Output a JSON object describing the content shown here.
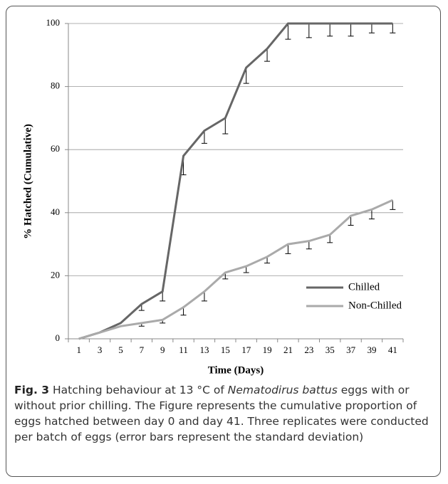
{
  "chart_data": {
    "type": "line",
    "y_label": "% Hatched (Cumulative)",
    "x_label": "Time (Days)",
    "categories": [
      "1",
      "3",
      "5",
      "7",
      "9",
      "11",
      "13",
      "15",
      "17",
      "19",
      "21",
      "23",
      "35",
      "37",
      "39",
      "41"
    ],
    "series": [
      {
        "name": "Chilled",
        "color": "#666666",
        "values": [
          0,
          2,
          5,
          11,
          15,
          58,
          66,
          70,
          86,
          92,
          100,
          100,
          100,
          100,
          100,
          100
        ],
        "errors": [
          null,
          null,
          null,
          2,
          3,
          6,
          4,
          5,
          5,
          4,
          5,
          4.5,
          4,
          4,
          3,
          3
        ]
      },
      {
        "name": "Non-Chilled",
        "color": "#aaaaaa",
        "values": [
          0,
          2,
          4,
          5,
          6,
          10,
          15,
          21,
          23,
          26,
          30,
          31,
          33,
          39,
          41,
          44
        ],
        "errors": [
          null,
          null,
          null,
          1,
          1,
          2.5,
          3,
          2,
          2,
          2,
          3,
          2.5,
          2.5,
          3,
          3,
          3
        ]
      }
    ],
    "ylim": [
      0,
      100
    ],
    "yticks": [
      0,
      20,
      40,
      60,
      80,
      100
    ],
    "grid": true
  },
  "caption": {
    "label": "Fig. 3",
    "text_before": " Hatching behaviour at 13 °C of ",
    "species": "Nematodirus battus",
    "text_after": " eggs with or without prior chilling. The Figure represents the cumulative proportion of eggs hatched between day 0 and day 41. Three replicates were conducted per batch of eggs (error bars represent the standard deviation)"
  }
}
